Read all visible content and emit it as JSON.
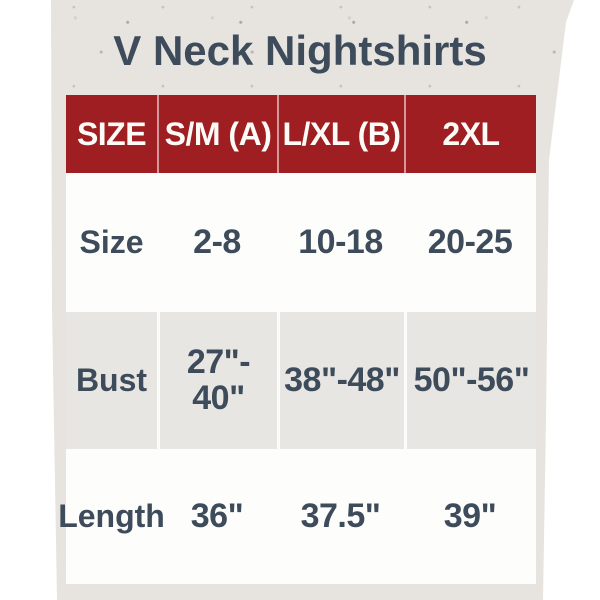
{
  "title": "V Neck Nightshirts",
  "table": {
    "headers": [
      "SIZE",
      "S/M (A)",
      "L/XL (B)",
      "2XL"
    ],
    "rows": [
      {
        "label": "Size",
        "values": [
          "2-8",
          "10-18",
          "20-25"
        ]
      },
      {
        "label": "Bust",
        "values": [
          "27\"-\n40\"",
          "38\"-48\"",
          "50\"-56\""
        ]
      },
      {
        "label": "Length",
        "values": [
          "36\"",
          "37.5\"",
          "39\""
        ]
      }
    ]
  },
  "colors": {
    "header_background": "#9e1e21",
    "header_text": "#fdfbf7",
    "title_text": "#3d4b5a",
    "body_text": "#3d4b5a",
    "row_alt_background": "#e7e6e3",
    "row_background": "#fdfdfc",
    "paper_background": "#e7e4e0",
    "page_background": "#ffffff"
  }
}
